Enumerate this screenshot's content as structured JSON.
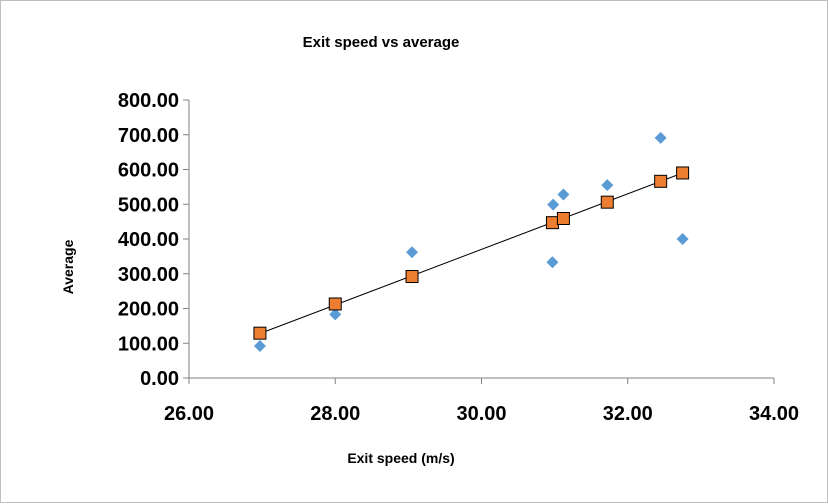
{
  "chart_data": {
    "type": "scatter",
    "title": "Exit speed vs average",
    "xlabel": "Exit speed (m/s)",
    "ylabel": "Average",
    "xlim": [
      26,
      34
    ],
    "ylim": [
      0,
      800
    ],
    "xticks": [
      26,
      28,
      30,
      32,
      34
    ],
    "yticks": [
      0,
      100,
      200,
      300,
      400,
      500,
      600,
      700,
      800
    ],
    "tick_format_decimals": 2,
    "grid": false,
    "legend": "none",
    "series": [
      {
        "marker": "diamond",
        "color": "#5b9bd5",
        "points": [
          {
            "x": 26.97,
            "y": 92
          },
          {
            "x": 28.0,
            "y": 183
          },
          {
            "x": 29.05,
            "y": 362
          },
          {
            "x": 30.97,
            "y": 333
          },
          {
            "x": 30.98,
            "y": 499
          },
          {
            "x": 31.12,
            "y": 528
          },
          {
            "x": 31.72,
            "y": 555
          },
          {
            "x": 32.45,
            "y": 691
          },
          {
            "x": 32.75,
            "y": 400
          }
        ]
      },
      {
        "marker": "square",
        "color": "#ed7d31",
        "points": [
          {
            "x": 26.97,
            "y": 129
          },
          {
            "x": 28.0,
            "y": 213
          },
          {
            "x": 29.05,
            "y": 292
          },
          {
            "x": 30.97,
            "y": 447
          },
          {
            "x": 31.12,
            "y": 459
          },
          {
            "x": 31.72,
            "y": 506
          },
          {
            "x": 32.45,
            "y": 566
          },
          {
            "x": 32.75,
            "y": 590
          }
        ]
      }
    ],
    "trendline": {
      "color": "#000000",
      "from": {
        "x": 26.97,
        "y": 128
      },
      "to": {
        "x": 32.75,
        "y": 590
      }
    }
  }
}
